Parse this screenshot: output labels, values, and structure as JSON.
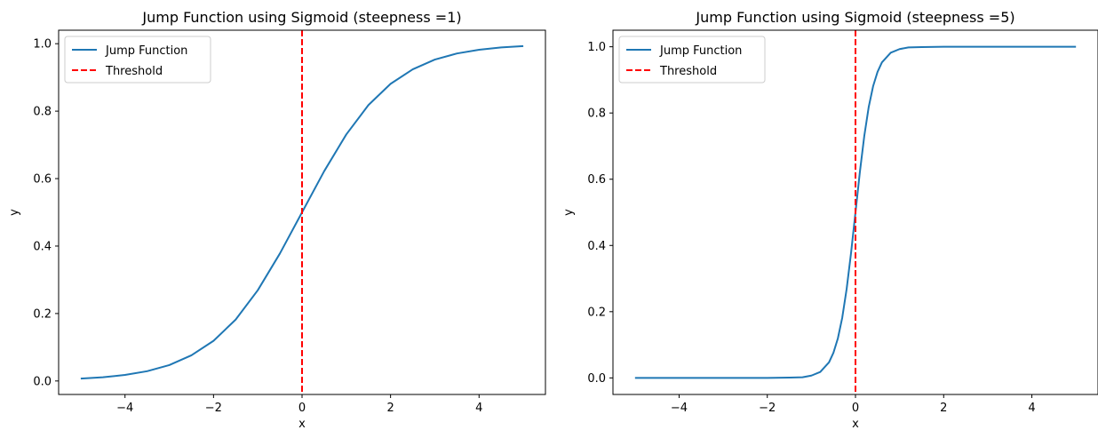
{
  "chart_data": [
    {
      "type": "line",
      "title": "Jump Function using Sigmoid (steepness =1)",
      "xlabel": "x",
      "ylabel": "y",
      "xlim": [
        -5.5,
        5.5
      ],
      "ylim": [
        -0.04,
        1.04
      ],
      "xticks": [
        -4,
        -2,
        0,
        2,
        4
      ],
      "xtick_labels": [
        "−4",
        "−2",
        "0",
        "2",
        "4"
      ],
      "yticks": [
        0.0,
        0.2,
        0.4,
        0.6,
        0.8,
        1.0
      ],
      "ytick_labels": [
        "0.0",
        "0.2",
        "0.4",
        "0.6",
        "0.8",
        "1.0"
      ],
      "grid": false,
      "legend_position": "top-left",
      "steepness": 1,
      "series": [
        {
          "name": "Jump Function",
          "color": "#1f77b4",
          "style": "solid",
          "x": [
            -5.0,
            -4.5,
            -4.0,
            -3.5,
            -3.0,
            -2.5,
            -2.0,
            -1.5,
            -1.0,
            -0.5,
            0.0,
            0.5,
            1.0,
            1.5,
            2.0,
            2.5,
            3.0,
            3.5,
            4.0,
            4.5,
            5.0
          ],
          "y": [
            0.007,
            0.011,
            0.018,
            0.029,
            0.047,
            0.076,
            0.119,
            0.182,
            0.269,
            0.378,
            0.5,
            0.622,
            0.731,
            0.818,
            0.881,
            0.924,
            0.953,
            0.971,
            0.982,
            0.989,
            0.993
          ]
        },
        {
          "name": "Threshold",
          "color": "#ff0000",
          "style": "dashed",
          "orientation": "vertical",
          "x_value": 0
        }
      ]
    },
    {
      "type": "line",
      "title": "Jump Function using Sigmoid (steepness =5)",
      "xlabel": "x",
      "ylabel": "y",
      "xlim": [
        -5.5,
        5.5
      ],
      "ylim": [
        -0.05,
        1.05
      ],
      "xticks": [
        -4,
        -2,
        0,
        2,
        4
      ],
      "xtick_labels": [
        "−4",
        "−2",
        "0",
        "2",
        "4"
      ],
      "yticks": [
        0.0,
        0.2,
        0.4,
        0.6,
        0.8,
        1.0
      ],
      "ytick_labels": [
        "0.0",
        "0.2",
        "0.4",
        "0.6",
        "0.8",
        "1.0"
      ],
      "grid": false,
      "legend_position": "top-left",
      "steepness": 5,
      "series": [
        {
          "name": "Jump Function",
          "color": "#1f77b4",
          "style": "solid",
          "x": [
            -5.0,
            -3.0,
            -2.0,
            -1.5,
            -1.2,
            -1.0,
            -0.8,
            -0.6,
            -0.5,
            -0.4,
            -0.3,
            -0.2,
            -0.1,
            0.0,
            0.1,
            0.2,
            0.3,
            0.4,
            0.5,
            0.6,
            0.8,
            1.0,
            1.2,
            1.5,
            2.0,
            3.0,
            5.0
          ],
          "y": [
            0.0,
            0.0,
            0.0,
            0.001,
            0.002,
            0.007,
            0.018,
            0.047,
            0.076,
            0.119,
            0.182,
            0.269,
            0.378,
            0.5,
            0.622,
            0.731,
            0.818,
            0.881,
            0.924,
            0.953,
            0.982,
            0.993,
            0.998,
            0.999,
            1.0,
            1.0,
            1.0
          ]
        },
        {
          "name": "Threshold",
          "color": "#ff0000",
          "style": "dashed",
          "orientation": "vertical",
          "x_value": 0
        }
      ]
    }
  ]
}
